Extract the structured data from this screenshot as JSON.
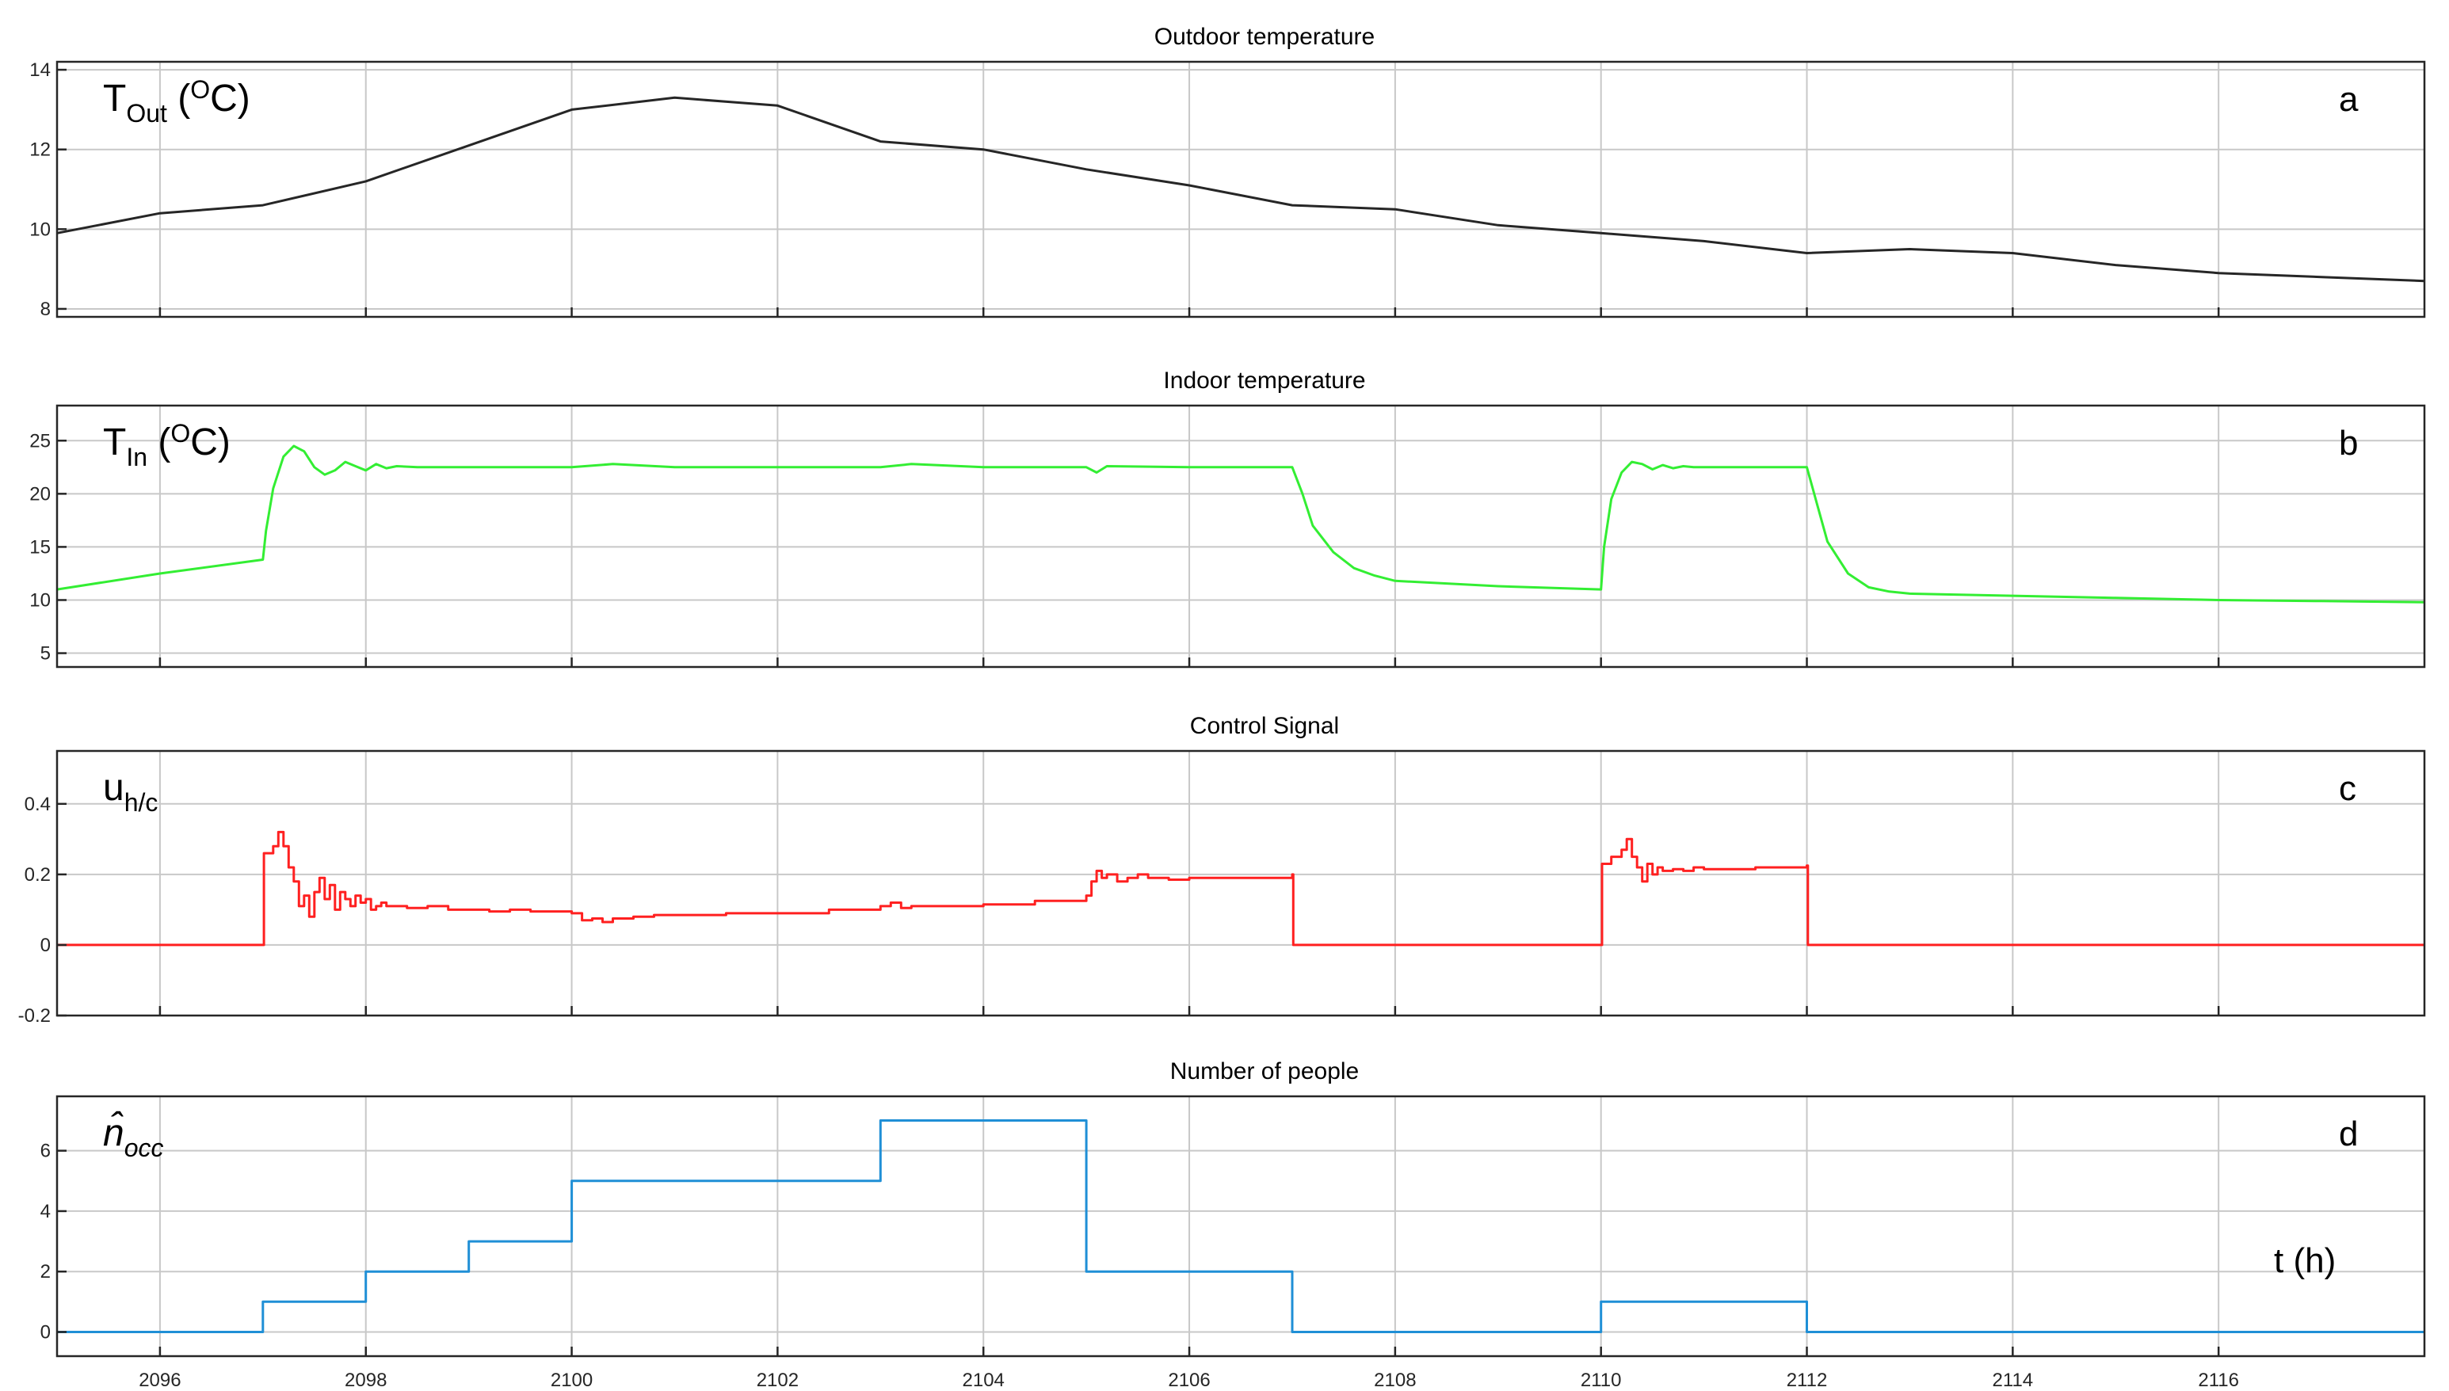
{
  "chart_data": [
    {
      "type": "line",
      "panel_letter": "a",
      "title": "Outdoor temperature",
      "ylabel_main": "T",
      "ylabel_sub": "Out",
      "ylabel_rest": " (",
      "ylabel_sup": "O",
      "ylabel_end": "C)",
      "xlim": [
        2095,
        2118
      ],
      "ylim": [
        7.8,
        14.2
      ],
      "yticks": [
        8,
        10,
        12,
        14
      ],
      "ytick_labels": [
        "8",
        "10",
        "12",
        "14"
      ],
      "grid": true,
      "color": "#262626",
      "interpolation": "linear",
      "series": [
        {
          "x": [
            2095,
            2096,
            2097,
            2098,
            2099,
            2100,
            2101,
            2102,
            2103,
            2104,
            2105,
            2106,
            2107,
            2108,
            2109,
            2110,
            2111,
            2112,
            2113,
            2114,
            2115,
            2116,
            2117,
            2118
          ],
          "y": [
            9.9,
            10.4,
            10.6,
            11.2,
            12.1,
            13.0,
            13.3,
            13.1,
            12.2,
            12.0,
            11.5,
            11.1,
            10.6,
            10.5,
            10.1,
            9.9,
            9.7,
            9.4,
            9.5,
            9.4,
            9.1,
            8.9,
            8.8,
            8.7
          ]
        }
      ]
    },
    {
      "type": "line",
      "panel_letter": "b",
      "title": "Indoor temperature",
      "ylabel_main": "T",
      "ylabel_sub": "In",
      "ylabel_rest": " (",
      "ylabel_sup": "O",
      "ylabel_end": "C)",
      "xlim": [
        2095,
        2118
      ],
      "ylim": [
        3.7,
        28.3
      ],
      "yticks": [
        5,
        10,
        15,
        20,
        25
      ],
      "ytick_labels": [
        "5",
        "10",
        "15",
        "20",
        "25"
      ],
      "grid": true,
      "color": "#33ee33",
      "interpolation": "linear",
      "series": [
        {
          "x": [
            2095,
            2096,
            2097,
            2097.03,
            2097.1,
            2097.2,
            2097.3,
            2097.4,
            2097.5,
            2097.6,
            2097.7,
            2097.8,
            2097.9,
            2098.0,
            2098.1,
            2098.2,
            2098.3,
            2098.5,
            2099,
            2100,
            2100.4,
            2101,
            2103,
            2103.3,
            2104,
            2105,
            2105.1,
            2105.2,
            2106,
            2107,
            2107.1,
            2107.2,
            2107.4,
            2107.6,
            2107.8,
            2108,
            2109,
            2110,
            2110.03,
            2110.1,
            2110.2,
            2110.3,
            2110.4,
            2110.5,
            2110.6,
            2110.7,
            2110.8,
            2110.9,
            2111,
            2112,
            2112.1,
            2112.2,
            2112.4,
            2112.6,
            2112.8,
            2113,
            2114,
            2115,
            2116,
            2117,
            2118
          ],
          "y": [
            11.0,
            12.5,
            13.8,
            16.5,
            20.5,
            23.5,
            24.5,
            24.0,
            22.5,
            21.8,
            22.2,
            23.0,
            22.6,
            22.2,
            22.8,
            22.4,
            22.6,
            22.5,
            22.5,
            22.5,
            22.8,
            22.5,
            22.5,
            22.8,
            22.5,
            22.5,
            22.0,
            22.6,
            22.5,
            22.5,
            20.0,
            17.0,
            14.5,
            13.0,
            12.3,
            11.8,
            11.3,
            11.0,
            15.0,
            19.5,
            22.0,
            23.0,
            22.8,
            22.3,
            22.7,
            22.4,
            22.6,
            22.5,
            22.5,
            22.5,
            19.0,
            15.5,
            12.5,
            11.2,
            10.8,
            10.6,
            10.4,
            10.2,
            10.0,
            9.9,
            9.8
          ]
        }
      ]
    },
    {
      "type": "line",
      "panel_letter": "c",
      "title": "Control Signal",
      "ylabel_main": "u",
      "ylabel_sub": "h/c",
      "xlim": [
        2095,
        2118
      ],
      "ylim": [
        -0.2,
        0.55
      ],
      "yticks": [
        -0.2,
        0,
        0.2,
        0.4
      ],
      "ytick_labels": [
        "-0.2",
        "0",
        "0.2",
        "0.4"
      ],
      "grid": true,
      "color": "#ff2020",
      "interpolation": "step",
      "series": [
        {
          "x": [
            2095,
            2097,
            2097.01,
            2097.1,
            2097.15,
            2097.2,
            2097.25,
            2097.3,
            2097.35,
            2097.4,
            2097.45,
            2097.5,
            2097.55,
            2097.6,
            2097.65,
            2097.7,
            2097.75,
            2097.8,
            2097.85,
            2097.9,
            2097.95,
            2098,
            2098.05,
            2098.1,
            2098.15,
            2098.2,
            2098.3,
            2098.4,
            2098.6,
            2098.8,
            2099,
            2099.2,
            2099.4,
            2099.6,
            2099.8,
            2100,
            2100.1,
            2100.2,
            2100.3,
            2100.4,
            2100.6,
            2100.8,
            2101,
            2101.5,
            2102,
            2102.5,
            2103,
            2103.1,
            2103.2,
            2103.3,
            2103.5,
            2104,
            2104.5,
            2105,
            2105.05,
            2105.1,
            2105.15,
            2105.2,
            2105.3,
            2105.4,
            2105.5,
            2105.6,
            2105.8,
            2106,
            2106.5,
            2107,
            2107.01,
            2110,
            2110.01,
            2110.1,
            2110.2,
            2110.25,
            2110.3,
            2110.35,
            2110.4,
            2110.45,
            2110.5,
            2110.55,
            2110.6,
            2110.7,
            2110.8,
            2110.9,
            2111,
            2111.5,
            2112,
            2112.01,
            2118
          ],
          "y": [
            0,
            0,
            0.26,
            0.28,
            0.32,
            0.28,
            0.22,
            0.18,
            0.11,
            0.14,
            0.08,
            0.15,
            0.19,
            0.13,
            0.17,
            0.1,
            0.15,
            0.13,
            0.11,
            0.14,
            0.12,
            0.13,
            0.1,
            0.11,
            0.12,
            0.11,
            0.11,
            0.105,
            0.11,
            0.1,
            0.1,
            0.095,
            0.1,
            0.095,
            0.095,
            0.09,
            0.07,
            0.075,
            0.065,
            0.075,
            0.08,
            0.085,
            0.085,
            0.09,
            0.09,
            0.1,
            0.11,
            0.12,
            0.105,
            0.11,
            0.11,
            0.115,
            0.125,
            0.14,
            0.18,
            0.21,
            0.19,
            0.2,
            0.18,
            0.19,
            0.2,
            0.19,
            0.185,
            0.19,
            0.19,
            0.2,
            0,
            0,
            0.23,
            0.25,
            0.27,
            0.3,
            0.25,
            0.22,
            0.18,
            0.23,
            0.2,
            0.22,
            0.21,
            0.215,
            0.21,
            0.22,
            0.215,
            0.22,
            0.225,
            0,
            0
          ]
        }
      ]
    },
    {
      "type": "line",
      "panel_letter": "d",
      "title": "Number of people",
      "ylabel_main": "n̂",
      "ylabel_sub": "occ",
      "xlabel": "t (h)",
      "xlim": [
        2095,
        2118
      ],
      "ylim": [
        -0.8,
        7.8
      ],
      "yticks": [
        0,
        2,
        4,
        6
      ],
      "ytick_labels": [
        "0",
        "2",
        "4",
        "6"
      ],
      "xticks": [
        2096,
        2098,
        2100,
        2102,
        2104,
        2106,
        2108,
        2110,
        2112,
        2114,
        2116
      ],
      "xtick_labels": [
        "2096",
        "2098",
        "2100",
        "2102",
        "2104",
        "2106",
        "2108",
        "2110",
        "2112",
        "2114",
        "2116"
      ],
      "grid": true,
      "color": "#1f8fd6",
      "interpolation": "step",
      "series": [
        {
          "x": [
            2095,
            2097,
            2098,
            2099,
            2100,
            2103,
            2105,
            2107,
            2110,
            2112,
            2118
          ],
          "y": [
            0,
            1,
            2,
            3,
            5,
            7,
            2,
            0,
            1,
            0,
            0
          ]
        }
      ]
    }
  ]
}
